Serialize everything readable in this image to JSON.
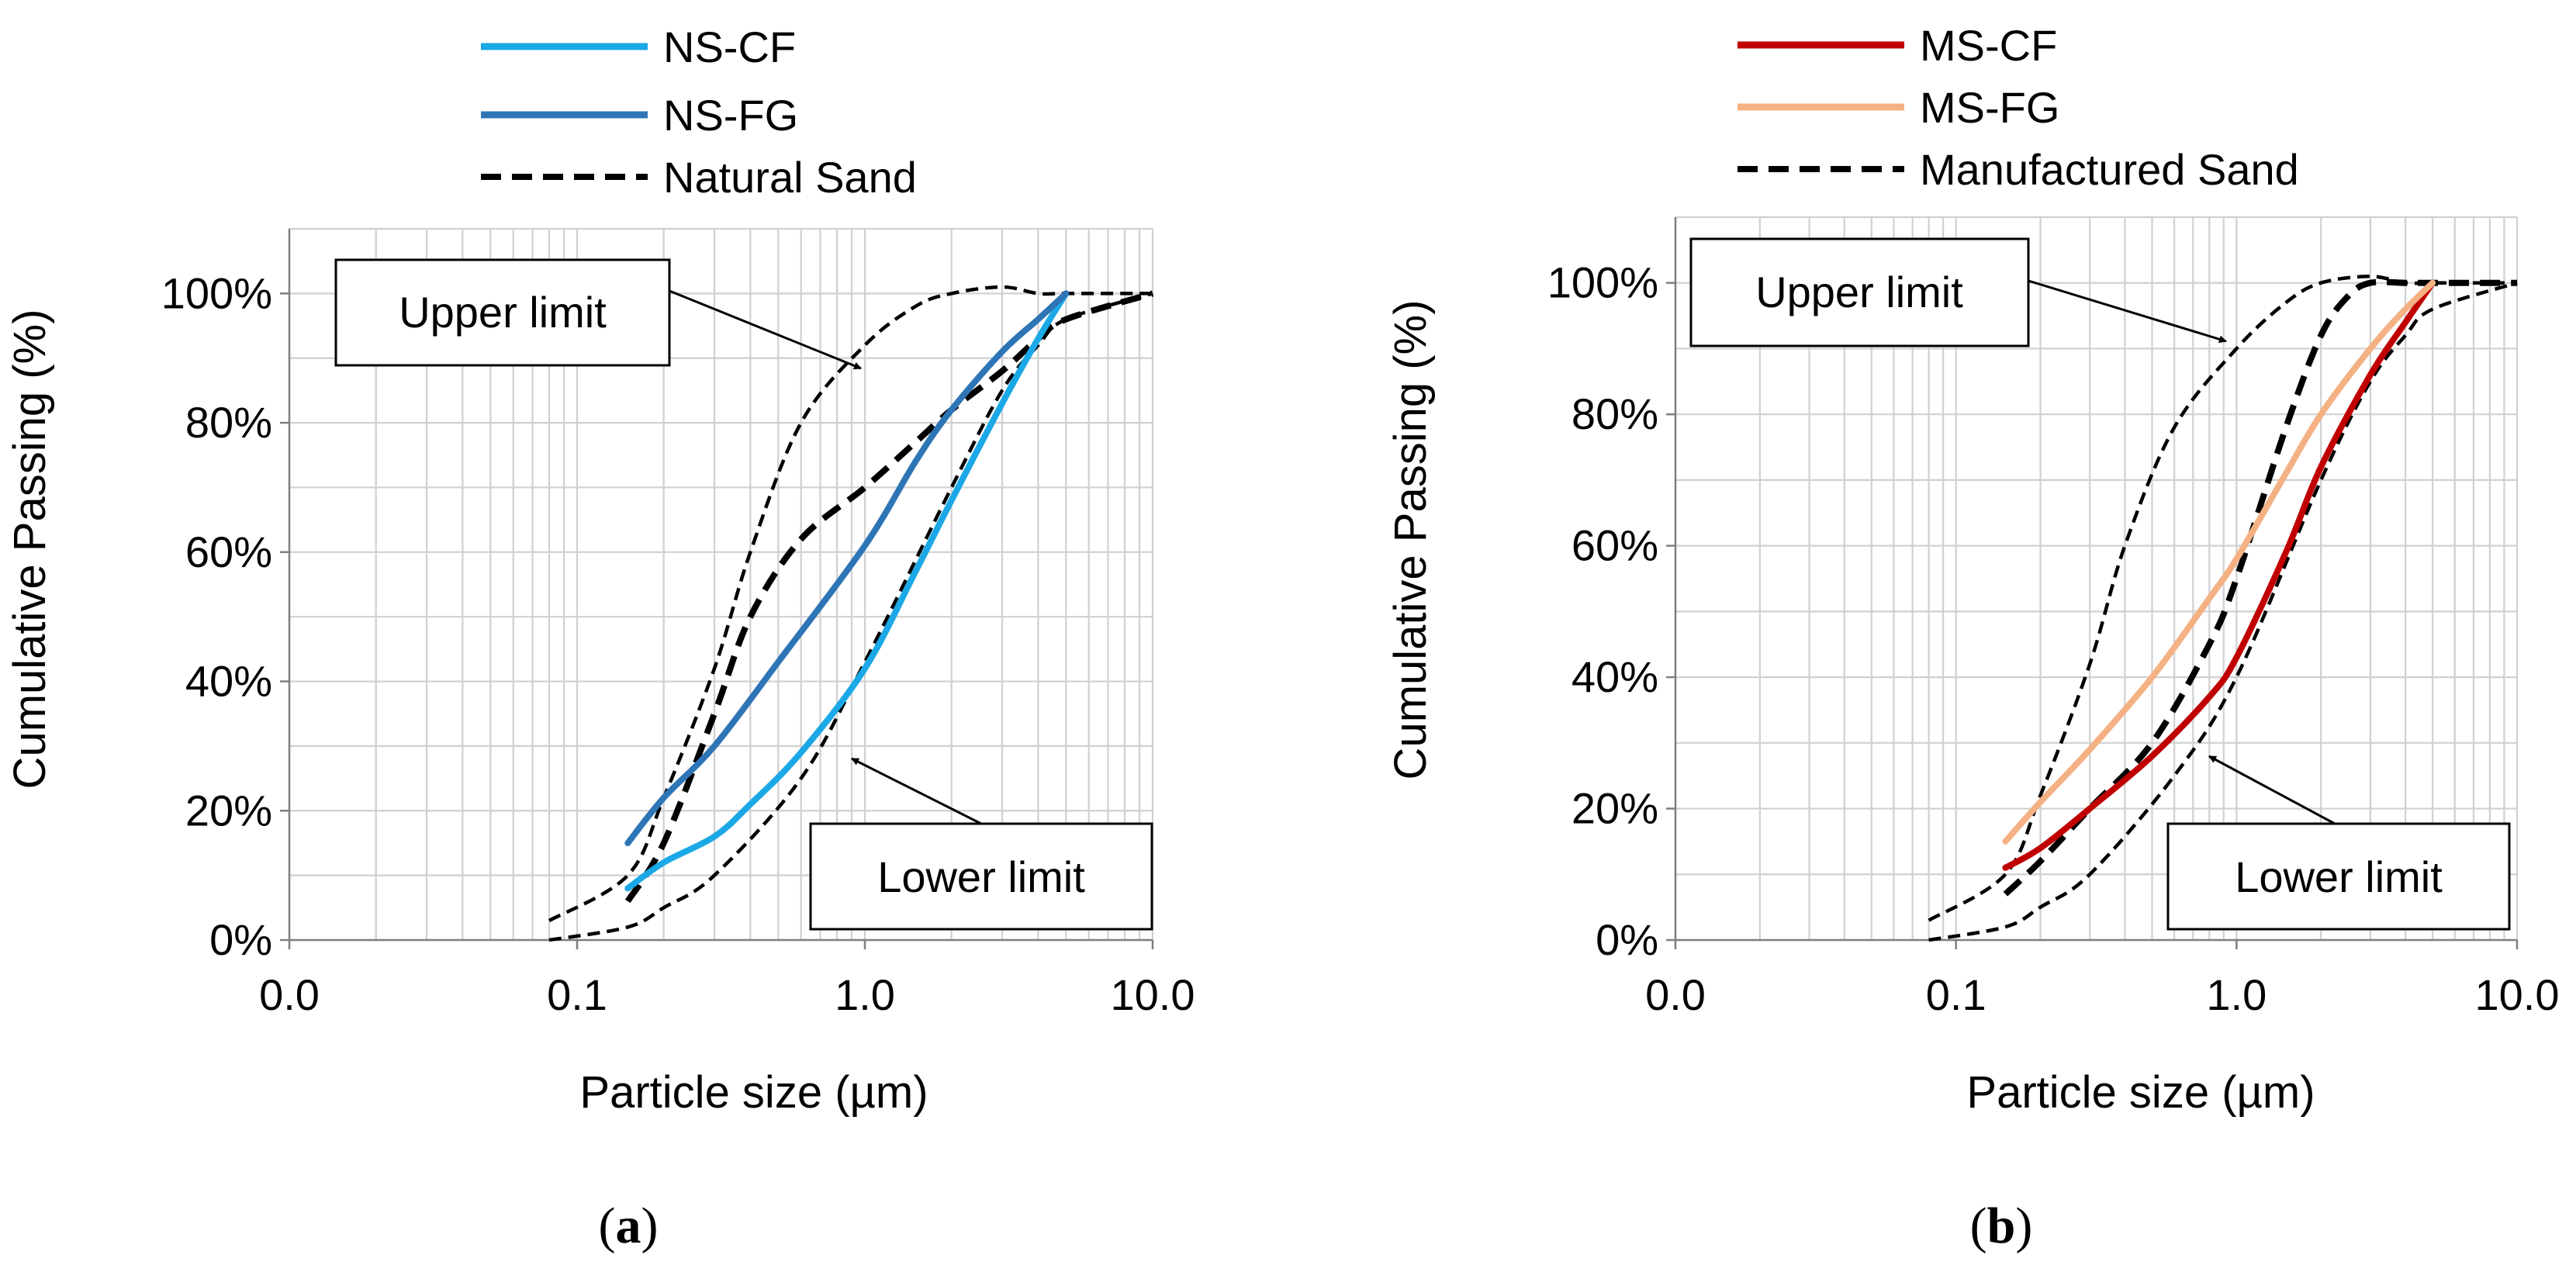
{
  "chart_data": [
    {
      "type": "line",
      "panel_label": "a",
      "xscale": "log",
      "xlim": [
        0.01,
        10.0
      ],
      "ylim": [
        0,
        110
      ],
      "xticks": [
        0.01,
        0.1,
        1.0,
        10.0
      ],
      "xtick_labels": [
        "0.0",
        "0.1",
        "1.0",
        "10.0"
      ],
      "yticks": [
        0,
        20,
        40,
        60,
        80,
        100
      ],
      "ytick_labels": [
        "0%",
        "20%",
        "40%",
        "60%",
        "80%",
        "100%"
      ],
      "xlabel": "Particle size (µm)",
      "ylabel": "Cumulative Passing (%)",
      "legend": [
        {
          "label": "NS-CF",
          "color": "#1ba8e6",
          "style": "solid"
        },
        {
          "label": "NS-FG",
          "color": "#2e75b6",
          "style": "solid"
        },
        {
          "label": "Natural Sand",
          "color": "#000000",
          "style": "dashed"
        }
      ],
      "series": [
        {
          "name": "Upper limit",
          "color": "#000000",
          "style": "dashed-thin",
          "x": [
            0.08,
            0.15,
            0.2,
            0.3,
            0.4,
            0.6,
            1.0,
            1.5,
            2.0,
            3.0,
            4.0,
            5.0,
            10.0
          ],
          "y": [
            3,
            10,
            22,
            42,
            60,
            80,
            92,
            98,
            100,
            101,
            100,
            100,
            100
          ]
        },
        {
          "name": "Lower limit",
          "color": "#000000",
          "style": "dashed-thin",
          "x": [
            0.08,
            0.15,
            0.2,
            0.3,
            0.6,
            1.0,
            2.0,
            3.0,
            4.0,
            5.0,
            10.0
          ],
          "y": [
            0,
            2,
            5,
            10,
            25,
            43,
            70,
            85,
            92,
            96,
            100
          ]
        },
        {
          "name": "Natural Sand",
          "color": "#000000",
          "style": "dashed-bold",
          "x": [
            0.15,
            0.2,
            0.3,
            0.4,
            0.6,
            1.0,
            1.5,
            2.0,
            3.0,
            4.0,
            5.0,
            10.0
          ],
          "y": [
            6,
            15,
            35,
            50,
            62,
            70,
            77,
            82,
            88,
            93,
            96,
            100
          ]
        },
        {
          "name": "NS-CF",
          "color": "#1ba8e6",
          "style": "solid",
          "x": [
            0.15,
            0.2,
            0.3,
            0.4,
            0.6,
            1.0,
            1.5,
            2.0,
            3.0,
            4.0,
            5.0
          ],
          "y": [
            8,
            12,
            16,
            21,
            29,
            42,
            57,
            68,
            83,
            93,
            100
          ]
        },
        {
          "name": "NS-FG",
          "color": "#2e75b6",
          "style": "solid",
          "x": [
            0.15,
            0.2,
            0.3,
            0.5,
            1.0,
            1.5,
            2.0,
            3.0,
            4.0,
            5.0
          ],
          "y": [
            15,
            22,
            30,
            43,
            61,
            74,
            82,
            91,
            96,
            100
          ]
        }
      ],
      "annotations": [
        {
          "text": "Upper limit",
          "arrow_to": {
            "x": 0.95,
            "y": 87
          }
        },
        {
          "text": "Lower limit",
          "arrow_to": {
            "x": 0.95,
            "y": 28
          }
        }
      ]
    },
    {
      "type": "line",
      "panel_label": "b",
      "xscale": "log",
      "xlim": [
        0.01,
        10.0
      ],
      "ylim": [
        0,
        110
      ],
      "xticks": [
        0.01,
        0.1,
        1.0,
        10.0
      ],
      "xtick_labels": [
        "0.0",
        "0.1",
        "1.0",
        "10.0"
      ],
      "yticks": [
        0,
        20,
        40,
        60,
        80,
        100
      ],
      "ytick_labels": [
        "0%",
        "20%",
        "40%",
        "60%",
        "80%",
        "100%"
      ],
      "xlabel": "Particle size (µm)",
      "ylabel": "Cumulative Passing (%)",
      "legend": [
        {
          "label": "MS-CF",
          "color": "#c00000",
          "style": "solid"
        },
        {
          "label": "MS-FG",
          "color": "#f4b183",
          "style": "solid"
        },
        {
          "label": "Manufactured Sand",
          "color": "#000000",
          "style": "dashed"
        }
      ],
      "series": [
        {
          "name": "Upper limit",
          "color": "#000000",
          "style": "dashed-thin",
          "x": [
            0.08,
            0.15,
            0.2,
            0.3,
            0.4,
            0.6,
            1.0,
            1.5,
            2.0,
            3.0,
            4.0,
            5.0,
            10.0
          ],
          "y": [
            3,
            10,
            22,
            42,
            60,
            78,
            90,
            97,
            100,
            101,
            100,
            100,
            100
          ]
        },
        {
          "name": "Lower limit",
          "color": "#000000",
          "style": "dashed-thin",
          "x": [
            0.08,
            0.15,
            0.2,
            0.3,
            0.6,
            1.0,
            2.0,
            3.0,
            4.0,
            5.0,
            10.0
          ],
          "y": [
            0,
            2,
            5,
            10,
            25,
            40,
            70,
            85,
            92,
            96,
            100
          ]
        },
        {
          "name": "Manufactured Sand",
          "color": "#000000",
          "style": "dashed-bold",
          "x": [
            0.15,
            0.2,
            0.3,
            0.5,
            0.8,
            1.0,
            1.5,
            2.0,
            2.5,
            3.0,
            4.0,
            5.0,
            10.0
          ],
          "y": [
            7,
            12,
            20,
            30,
            45,
            55,
            78,
            92,
            98,
            100,
            100,
            100,
            100
          ]
        },
        {
          "name": "MS-CF",
          "color": "#c00000",
          "style": "solid",
          "x": [
            0.15,
            0.2,
            0.3,
            0.5,
            0.8,
            1.0,
            1.5,
            2.0,
            3.0,
            4.0,
            5.0
          ],
          "y": [
            11,
            14,
            20,
            28,
            37,
            43,
            59,
            72,
            86,
            94,
            100
          ]
        },
        {
          "name": "MS-FG",
          "color": "#f4b183",
          "style": "solid",
          "x": [
            0.15,
            0.2,
            0.3,
            0.5,
            0.8,
            1.0,
            1.5,
            2.0,
            3.0,
            4.0,
            5.0
          ],
          "y": [
            15,
            21,
            29,
            40,
            52,
            58,
            71,
            80,
            90,
            96,
            100
          ]
        }
      ],
      "annotations": [
        {
          "text": "Upper limit",
          "arrow_to": {
            "x": 0.45,
            "y": 91
          }
        },
        {
          "text": "Lower limit",
          "arrow_to": {
            "x": 0.45,
            "y": 28
          }
        }
      ]
    }
  ],
  "captions": [
    {
      "open": "(",
      "label": "a",
      "close": ")"
    },
    {
      "open": "(",
      "label": "b",
      "close": ")"
    }
  ]
}
